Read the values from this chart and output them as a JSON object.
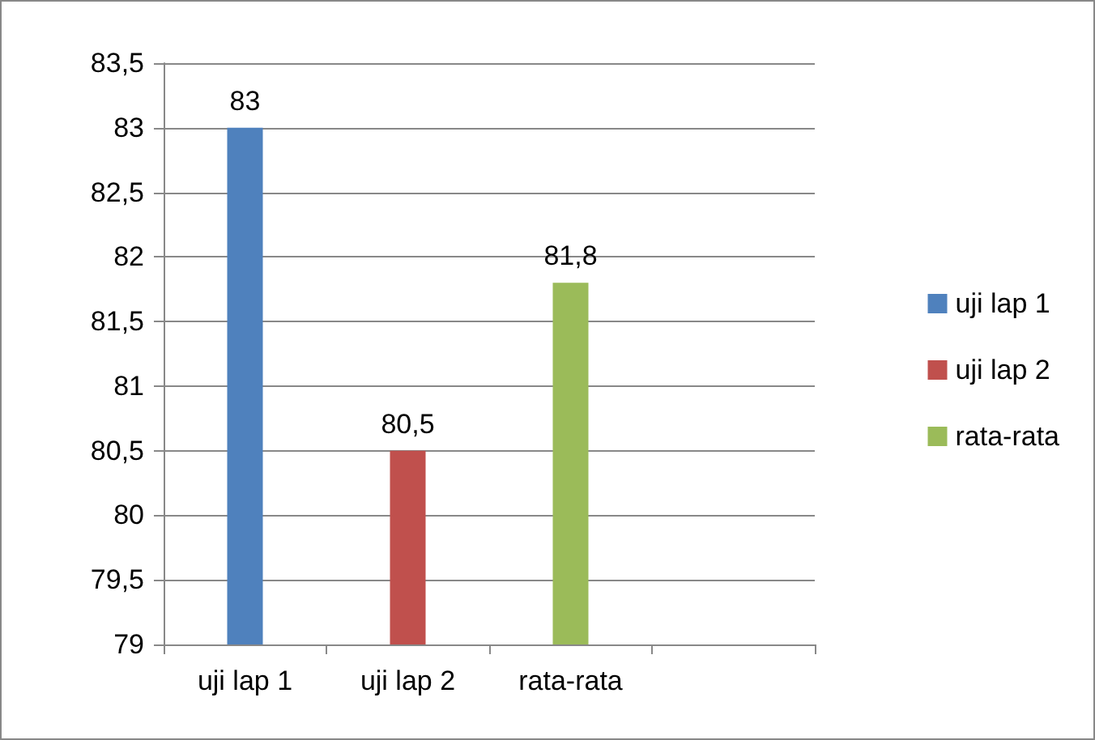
{
  "chart_data": {
    "type": "bar",
    "categories": [
      "uji lap 1",
      "uji lap 2",
      "rata-rata",
      null
    ],
    "series": [
      {
        "name": "uji lap 1",
        "color": "#4f81bd",
        "values": [
          83,
          null,
          null,
          null
        ],
        "value_labels": [
          "83",
          null,
          null,
          null
        ]
      },
      {
        "name": "uji lap 2",
        "color": "#c0504d",
        "values": [
          null,
          80.5,
          null,
          null
        ],
        "value_labels": [
          null,
          "80,5",
          null,
          null
        ]
      },
      {
        "name": "rata-rata",
        "color": "#9bbb59",
        "values": [
          null,
          null,
          81.8,
          null
        ],
        "value_labels": [
          null,
          null,
          "81,8",
          null
        ]
      }
    ],
    "ylim": [
      79,
      83.5
    ],
    "yticks": [
      79,
      {
        "value": 79.5,
        "label": "79,5"
      },
      80,
      {
        "value": 80.5,
        "label": "80,5"
      },
      81,
      {
        "value": 81.5,
        "label": "81,5"
      },
      82,
      {
        "value": 82.5,
        "label": "82,5"
      },
      83,
      {
        "value": 83.5,
        "label": "83,5"
      }
    ],
    "grid": "y",
    "legend": "right"
  }
}
